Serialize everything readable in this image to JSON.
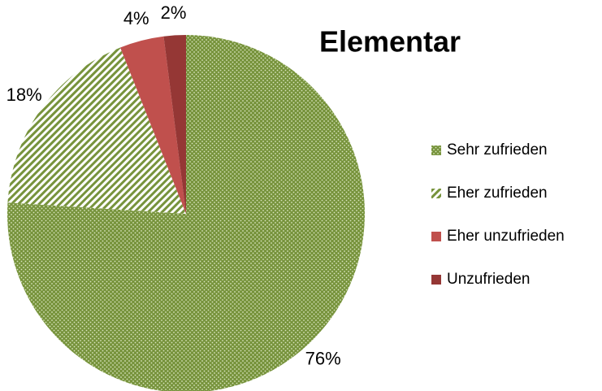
{
  "chart_data": {
    "type": "pie",
    "title": "Elementar",
    "categories": [
      "Sehr zufrieden",
      "Eher zufrieden",
      "Eher unzufrieden",
      "Unzufrieden"
    ],
    "values": [
      76,
      18,
      4,
      2
    ],
    "value_labels": [
      "76%",
      "18%",
      "4%",
      "2%"
    ],
    "colors": [
      "#77933c",
      "#77933c",
      "#c0504d",
      "#953735"
    ],
    "patterns": [
      "dots",
      "stripes",
      "solid",
      "solid"
    ],
    "legend": "right"
  }
}
